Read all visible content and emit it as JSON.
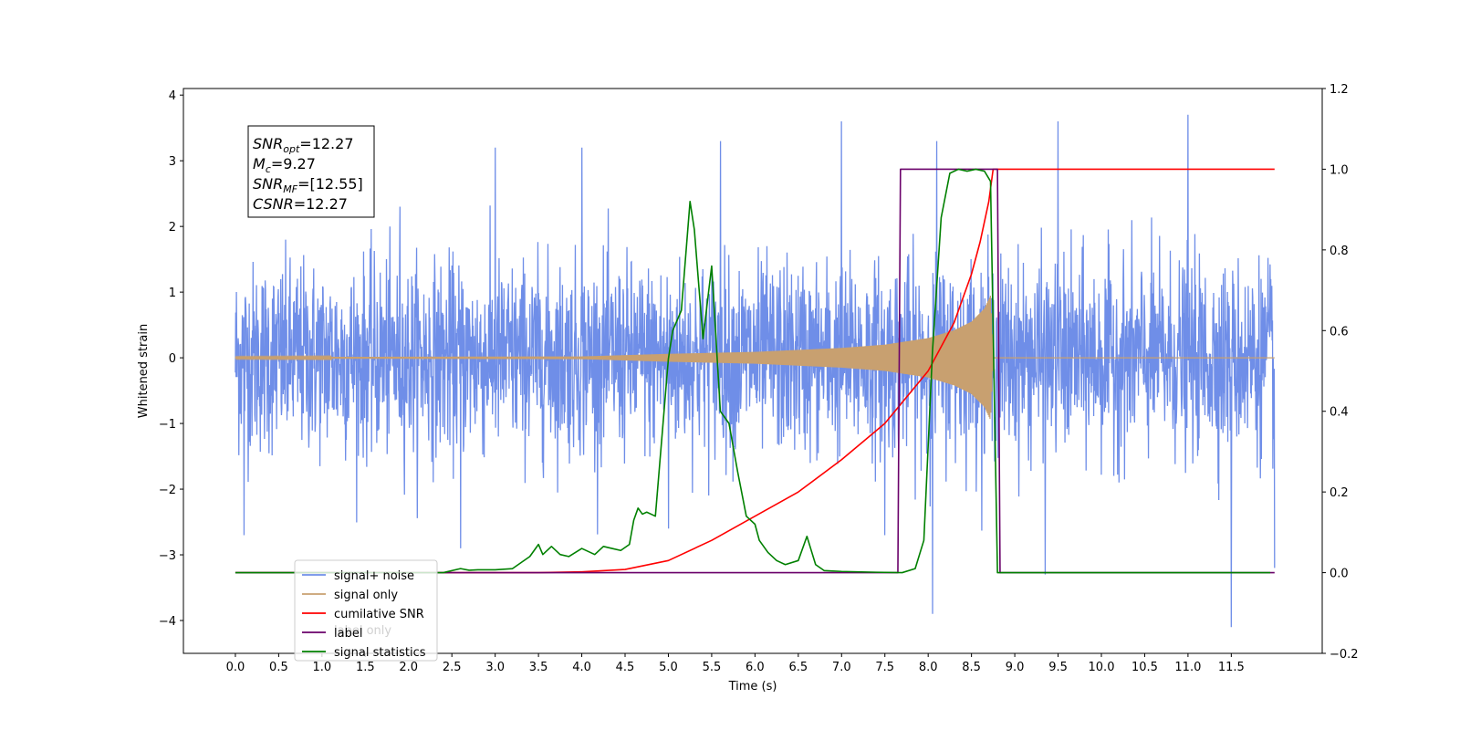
{
  "chart_data": {
    "type": "line",
    "xlabel": "Time (s)",
    "ylabel": "Whitened strain",
    "xlim": [
      -0.6,
      12.55
    ],
    "ylim": [
      -4.5,
      4.1
    ],
    "ylim_right": [
      -0.2,
      1.2
    ],
    "x_ticks": [
      "0.0",
      "0.5",
      "1.0",
      "1.5",
      "2.0",
      "2.5",
      "3.0",
      "3.5",
      "4.0",
      "4.5",
      "5.0",
      "5.5",
      "6.0",
      "6.5",
      "7.0",
      "7.5",
      "8.0",
      "8.5",
      "9.0",
      "9.5",
      "10.0",
      "10.5",
      "11.0",
      "11.5"
    ],
    "y_ticks_left": [
      "−4",
      "−3",
      "−2",
      "−1",
      "0",
      "1",
      "2",
      "3",
      "4"
    ],
    "y_ticks_right": [
      "−0.2",
      "0.0",
      "0.2",
      "0.4",
      "0.6",
      "0.8",
      "1.0",
      "1.2"
    ],
    "grid": false,
    "legend_position": "lower-left",
    "legend": [
      "signal+ noise",
      "signal only",
      "cumilative SNR",
      "label",
      "signal statistics"
    ],
    "hidden_text": "label only",
    "annotation": {
      "lines": [
        {
          "base": "SNR",
          "sub": "opt",
          "value": "=12.27"
        },
        {
          "base": "M",
          "sub": "c",
          "value": "=9.27"
        },
        {
          "base": "SNR",
          "sub": "MF",
          "value": "=[12.55]"
        },
        {
          "base": "CSNR",
          "sub": "",
          "value": "=12.27"
        }
      ]
    },
    "series": [
      {
        "name": "signal+ noise",
        "axis": "left",
        "color": "#6f8ee8",
        "description_range": [
          -2.0,
          2.1
        ],
        "t_range": [
          0.0,
          12.0
        ],
        "peaks": [
          [
            1.9,
            2.3
          ],
          [
            3.0,
            3.2
          ],
          [
            4.0,
            3.2
          ],
          [
            5.6,
            3.3
          ],
          [
            7.0,
            3.6
          ],
          [
            8.1,
            3.3
          ],
          [
            9.5,
            3.6
          ],
          [
            11.0,
            3.7
          ]
        ],
        "troughs": [
          [
            0.1,
            -2.7
          ],
          [
            2.6,
            -2.9
          ],
          [
            5.0,
            -2.6
          ],
          [
            7.5,
            -2.7
          ],
          [
            8.05,
            -3.9
          ],
          [
            9.35,
            -3.3
          ],
          [
            11.5,
            -4.1
          ],
          [
            12.0,
            -3.2
          ]
        ]
      },
      {
        "name": "signal only",
        "axis": "left",
        "color": "#c8a070",
        "envelope": [
          [
            0,
            0.01
          ],
          [
            4.0,
            0.02
          ],
          [
            5.0,
            0.06
          ],
          [
            6.0,
            0.09
          ],
          [
            7.0,
            0.15
          ],
          [
            7.5,
            0.2
          ],
          [
            8.0,
            0.3
          ],
          [
            8.3,
            0.42
          ],
          [
            8.5,
            0.55
          ],
          [
            8.65,
            0.75
          ],
          [
            8.72,
            0.95
          ],
          [
            8.75,
            0.0
          ],
          [
            12.0,
            0.0
          ]
        ]
      },
      {
        "name": "cumilative SNR",
        "axis": "right",
        "color": "#ff0000",
        "x": [
          0.0,
          3.5,
          4.0,
          4.5,
          5.0,
          5.5,
          6.0,
          6.5,
          7.0,
          7.5,
          8.0,
          8.3,
          8.5,
          8.6,
          8.7,
          8.75,
          8.8,
          12.0
        ],
        "values": [
          0.0,
          0.0,
          0.002,
          0.008,
          0.03,
          0.08,
          0.14,
          0.2,
          0.28,
          0.37,
          0.5,
          0.62,
          0.74,
          0.82,
          0.92,
          1.0,
          1.0,
          1.0
        ]
      },
      {
        "name": "label",
        "axis": "right",
        "color": "#6a006a",
        "x": [
          0.0,
          7.65,
          7.68,
          8.8,
          8.83,
          12.0
        ],
        "values": [
          0.0,
          0.0,
          1.0,
          1.0,
          0.0,
          0.0
        ]
      },
      {
        "name": "signal statistics",
        "axis": "right",
        "color": "#008000",
        "x": [
          0.0,
          2.4,
          2.6,
          2.7,
          2.8,
          3.0,
          3.2,
          3.4,
          3.5,
          3.55,
          3.65,
          3.75,
          3.85,
          4.0,
          4.15,
          4.25,
          4.35,
          4.45,
          4.55,
          4.6,
          4.65,
          4.7,
          4.75,
          4.8,
          4.85,
          5.0,
          5.05,
          5.15,
          5.25,
          5.3,
          5.4,
          5.5,
          5.6,
          5.7,
          5.8,
          5.9,
          6.0,
          6.05,
          6.15,
          6.25,
          6.35,
          6.5,
          6.6,
          6.7,
          6.8,
          7.0,
          7.4,
          7.7,
          7.85,
          7.95,
          8.05,
          8.15,
          8.25,
          8.35,
          8.45,
          8.55,
          8.65,
          8.72,
          8.8,
          11.95
        ],
        "values": [
          0.0,
          0.0,
          0.01,
          0.006,
          0.007,
          0.007,
          0.01,
          0.04,
          0.07,
          0.045,
          0.065,
          0.045,
          0.04,
          0.06,
          0.045,
          0.065,
          0.06,
          0.055,
          0.07,
          0.13,
          0.16,
          0.145,
          0.15,
          0.145,
          0.14,
          0.53,
          0.6,
          0.65,
          0.92,
          0.85,
          0.58,
          0.76,
          0.4,
          0.37,
          0.25,
          0.14,
          0.12,
          0.08,
          0.05,
          0.03,
          0.02,
          0.03,
          0.09,
          0.02,
          0.005,
          0.003,
          0.001,
          0.0,
          0.01,
          0.08,
          0.55,
          0.88,
          0.99,
          1.0,
          0.995,
          1.0,
          0.995,
          0.97,
          0.0,
          0.0
        ]
      }
    ]
  }
}
